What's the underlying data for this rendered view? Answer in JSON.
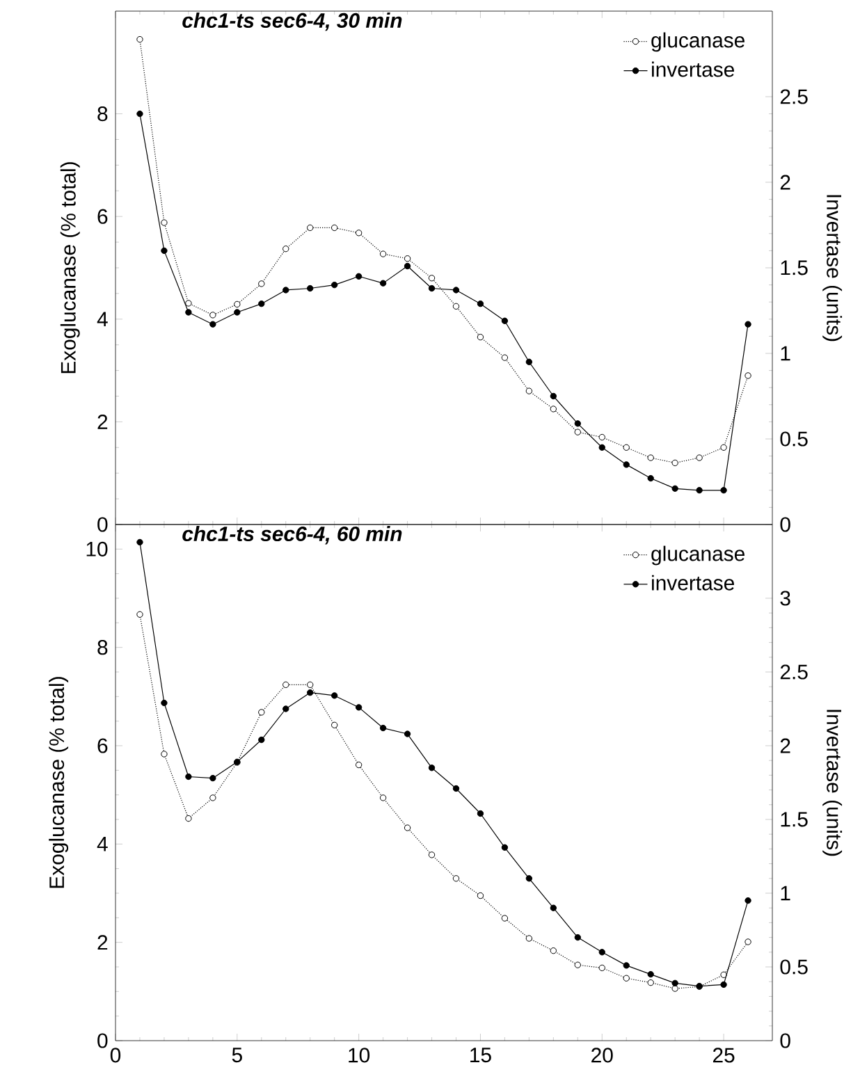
{
  "chart_data": [
    {
      "type": "line",
      "title": "chc1-ts sec6-4, 30 min",
      "ylabel": "Exoglucanase (% total)",
      "y2label": "Invertase (units)",
      "categories": [
        null,
        null,
        null,
        null,
        null,
        null,
        null,
        null,
        null,
        null,
        null,
        null,
        null,
        null,
        null,
        null,
        null,
        null,
        null,
        null,
        null,
        null,
        null,
        null,
        null,
        null
      ],
      "series": [
        {
          "name": "glucanase",
          "color": "#000000",
          "marker": "circle",
          "line_style": "dotted",
          "values": [
            9.45,
            5.88,
            4.31,
            4.08,
            4.29,
            4.69,
            5.37,
            5.78,
            5.78,
            5.68,
            5.27,
            5.18,
            4.8,
            4.25,
            3.65,
            3.25,
            2.6,
            2.25,
            1.8,
            1.7,
            1.5,
            1.3,
            1.2,
            1.3,
            1.5,
            2.9
          ]
        },
        {
          "name": "invertase",
          "color": "#000000",
          "marker": "circle",
          "line_style": "solid",
          "axis": "y2",
          "values": [
            2.4,
            1.6,
            1.24,
            1.17,
            1.24,
            1.29,
            1.37,
            1.38,
            1.4,
            1.45,
            1.41,
            1.51,
            1.38,
            1.37,
            1.29,
            1.19,
            0.95,
            0.75,
            0.59,
            0.45,
            0.35,
            0.27,
            0.21,
            0.2,
            0.2,
            1.17
          ]
        }
      ],
      "ylim": [
        0,
        10
      ],
      "yticks": [
        0,
        2,
        4,
        6,
        8
      ],
      "y2lim": [
        0,
        3
      ],
      "y2ticks": [
        0,
        0.5,
        1,
        1.5,
        2,
        2.5
      ],
      "tick_labels": [
        "y",
        "y2"
      ],
      "legend": "top right"
    },
    {
      "type": "line",
      "title": "chc1-ts sec6-4, 60 min",
      "ylabel": "Exoglucanase (% total)",
      "y2label": "Invertase (units)",
      "x": [
        1,
        2,
        3,
        4,
        5,
        6,
        7,
        8,
        9,
        10,
        11,
        12,
        13,
        14,
        15,
        16,
        17,
        18,
        19,
        20,
        21,
        22,
        23,
        24,
        25,
        26
      ],
      "series": [
        {
          "name": "glucanase",
          "color": "#000000",
          "marker": "circle",
          "line_style": "dotted",
          "values": [
            8.67,
            5.83,
            4.52,
            4.94,
            5.66,
            6.68,
            7.24,
            7.24,
            6.42,
            5.61,
            4.94,
            4.33,
            3.78,
            3.3,
            2.95,
            2.49,
            2.08,
            1.83,
            1.54,
            1.48,
            1.27,
            1.18,
            1.06,
            1.1,
            1.34,
            2.01
          ]
        },
        {
          "name": "invertase",
          "color": "#000000",
          "marker": "circle",
          "line_style": "solid",
          "axis": "y2",
          "values": [
            3.38,
            2.29,
            1.79,
            1.78,
            1.89,
            2.04,
            2.25,
            2.36,
            2.34,
            2.26,
            2.12,
            2.08,
            1.85,
            1.71,
            1.54,
            1.31,
            1.1,
            0.9,
            0.7,
            0.6,
            0.51,
            0.45,
            0.39,
            0.37,
            0.38,
            0.95
          ]
        }
      ],
      "xlim": [
        0,
        27
      ],
      "xticks": [
        0,
        5,
        10,
        15,
        20,
        25
      ],
      "ylim": [
        0,
        10.5
      ],
      "yticks": [
        0,
        2,
        4,
        6,
        8,
        10
      ],
      "y2lim": [
        0,
        3.5
      ],
      "y2ticks": [
        0,
        0.5,
        1,
        1.5,
        2,
        2.5,
        3
      ],
      "legend": "top right"
    }
  ]
}
